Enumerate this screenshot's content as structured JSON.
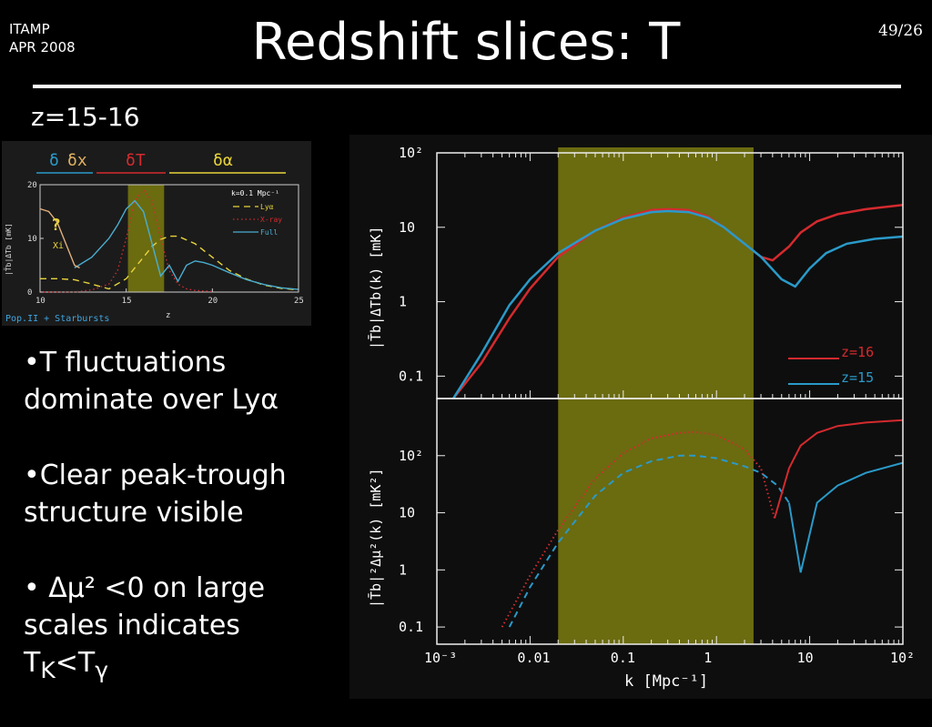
{
  "header": {
    "org": "ITAMP",
    "date": "APR 2008",
    "title": "Redshift slices: T",
    "slide_number": "49/26"
  },
  "subtitle": "z=15-16",
  "bullets": [
    "•T fluctuations dominate over Lyα",
    "•Clear peak-trough structure visible",
    "• Δμ² <0 on large scales indicates T",
    "K",
    "<T",
    "γ"
  ],
  "colors": {
    "accent_band": "#6b6b10",
    "red": "#d42a2e",
    "blue": "#2a9ac9",
    "text": "#ffffff"
  },
  "chart_data": [
    {
      "type": "line",
      "xlabel": "z",
      "ylabel": "|T̄b|Δ̄Tb [mK]",
      "xlim": [
        10,
        25
      ],
      "ylim": [
        0,
        20
      ],
      "x_ticks": [
        "10",
        "15",
        "20",
        "25"
      ],
      "y_ticks": [
        "0",
        "10",
        "20"
      ],
      "region_labels": [
        "δ",
        "δx",
        "δT",
        "δα"
      ],
      "annotations": [
        "k=0.1 Mpc⁻¹",
        "?",
        "Xi"
      ],
      "footer_label": "Pop.II + Starbursts",
      "highlight_band": [
        15.1,
        17.2
      ],
      "series": [
        {
          "name": "Lyα",
          "color": "#e8d43a",
          "style": "dashed",
          "x": [
            10,
            11,
            12,
            13,
            14,
            15,
            15.5,
            16,
            16.5,
            17,
            17.5,
            18,
            19,
            20,
            21,
            22,
            23,
            24,
            25
          ],
          "y": [
            2.5,
            2.5,
            2.3,
            1.5,
            0.6,
            2.5,
            4.5,
            6.5,
            8.5,
            9.8,
            10.4,
            10.4,
            9.0,
            6.5,
            4.0,
            2.4,
            1.3,
            0.7,
            0.4
          ]
        },
        {
          "name": "X-ray",
          "color": "#d42a2e",
          "style": "dotted",
          "x": [
            10,
            11,
            12,
            13,
            14,
            14.5,
            15,
            15.5,
            16,
            16.5,
            17,
            17.5,
            18,
            18.5,
            19,
            19.5,
            20
          ],
          "y": [
            0,
            0,
            0,
            0.4,
            1.5,
            4.0,
            10.0,
            17.0,
            19.0,
            17.0,
            10.0,
            4.0,
            1.5,
            0.6,
            0.3,
            0.2,
            0.1
          ]
        },
        {
          "name": "Full",
          "color": "#4aaed0",
          "style": "solid",
          "x": [
            12,
            13,
            14,
            14.5,
            15,
            15.5,
            16,
            16.5,
            17,
            17.5,
            18,
            18.5,
            19,
            19.5,
            20,
            21,
            22,
            23,
            24,
            25
          ],
          "y": [
            4.5,
            6.5,
            10.0,
            12.5,
            15.5,
            17.0,
            15.0,
            9.0,
            3.0,
            5.0,
            2.0,
            5.0,
            5.8,
            5.5,
            5.0,
            3.6,
            2.3,
            1.4,
            0.8,
            0.5
          ]
        },
        {
          "name": "",
          "color": "#e0b080",
          "style": "solid",
          "x": [
            10,
            10.5,
            11,
            11.5,
            12,
            12.3
          ],
          "y": [
            15.5,
            15.0,
            13.0,
            9.0,
            5.0,
            4.5
          ]
        }
      ]
    },
    {
      "type": "line",
      "ylabel": "|T̄b|Δ̄Tb(k) [mK]",
      "xscale": "log",
      "yscale": "log",
      "xlim": [
        0.001,
        100
      ],
      "ylim": [
        0.05,
        100
      ],
      "y_ticks": [
        "10²",
        "10",
        "1",
        "0.1"
      ],
      "highlight_band": [
        0.02,
        2.5
      ],
      "series": [
        {
          "name": "z=16",
          "color": "#d42a2e",
          "x": [
            0.0015,
            0.003,
            0.006,
            0.01,
            0.02,
            0.05,
            0.1,
            0.2,
            0.3,
            0.5,
            0.8,
            1.2,
            2,
            3,
            4,
            6,
            8,
            12,
            20,
            40,
            100
          ],
          "y": [
            0.05,
            0.15,
            0.6,
            1.5,
            4.0,
            9.0,
            13.5,
            17.0,
            17.5,
            17.0,
            14.0,
            10.0,
            6.0,
            4.0,
            3.6,
            5.5,
            8.5,
            12.0,
            15.0,
            17.5,
            20.0
          ]
        },
        {
          "name": "z=15",
          "color": "#2a9ac9",
          "x": [
            0.0015,
            0.003,
            0.006,
            0.01,
            0.02,
            0.05,
            0.1,
            0.2,
            0.3,
            0.5,
            0.8,
            1.2,
            2,
            3,
            5,
            7,
            10,
            15,
            25,
            50,
            100
          ],
          "y": [
            0.05,
            0.2,
            0.9,
            2.0,
            4.5,
            9.0,
            13.0,
            16.0,
            16.5,
            16.0,
            13.5,
            10.0,
            6.0,
            4.0,
            2.0,
            1.6,
            2.8,
            4.5,
            6.0,
            7.0,
            7.5
          ]
        }
      ]
    },
    {
      "type": "line",
      "ylabel": "|T̄b|²Δμ²(k) [mK²]",
      "xlabel": "k [Mpc⁻¹]",
      "xscale": "log",
      "yscale": "log",
      "xlim": [
        0.001,
        100
      ],
      "ylim": [
        0.05,
        1000
      ],
      "x_ticks": [
        "10⁻³",
        "0.01",
        "0.1",
        "1",
        "10",
        "10²"
      ],
      "y_ticks": [
        "10²",
        "10",
        "1",
        "0.1"
      ],
      "highlight_band": [
        0.02,
        2.5
      ],
      "series": [
        {
          "name": "z=16",
          "color": "#d42a2e",
          "style": "dotted",
          "x": [
            0.005,
            0.01,
            0.02,
            0.05,
            0.1,
            0.2,
            0.4,
            0.6,
            1.0,
            2.0,
            3.0,
            4.2
          ],
          "y": [
            0.1,
            0.8,
            5.0,
            40,
            110,
            200,
            250,
            260,
            230,
            130,
            60,
            8
          ]
        },
        {
          "name": "z=15",
          "color": "#2a9ac9",
          "style": "dashed",
          "x": [
            0.006,
            0.01,
            0.02,
            0.05,
            0.1,
            0.2,
            0.4,
            0.6,
            1.0,
            2.0,
            3.0,
            4.5,
            6.0
          ],
          "y": [
            0.1,
            0.5,
            3.0,
            20,
            50,
            80,
            100,
            100,
            90,
            65,
            50,
            30,
            15
          ]
        },
        {
          "name": "z=16",
          "color": "#d42a2e",
          "style": "solid",
          "x": [
            4.2,
            6,
            8,
            12,
            20,
            40,
            100
          ],
          "y": [
            8,
            60,
            150,
            250,
            330,
            380,
            420
          ]
        },
        {
          "name": "z=15",
          "color": "#2a9ac9",
          "style": "solid",
          "x": [
            6,
            8,
            12,
            20,
            40,
            100
          ],
          "y": [
            15,
            0.9,
            15,
            30,
            50,
            75
          ]
        }
      ]
    }
  ]
}
